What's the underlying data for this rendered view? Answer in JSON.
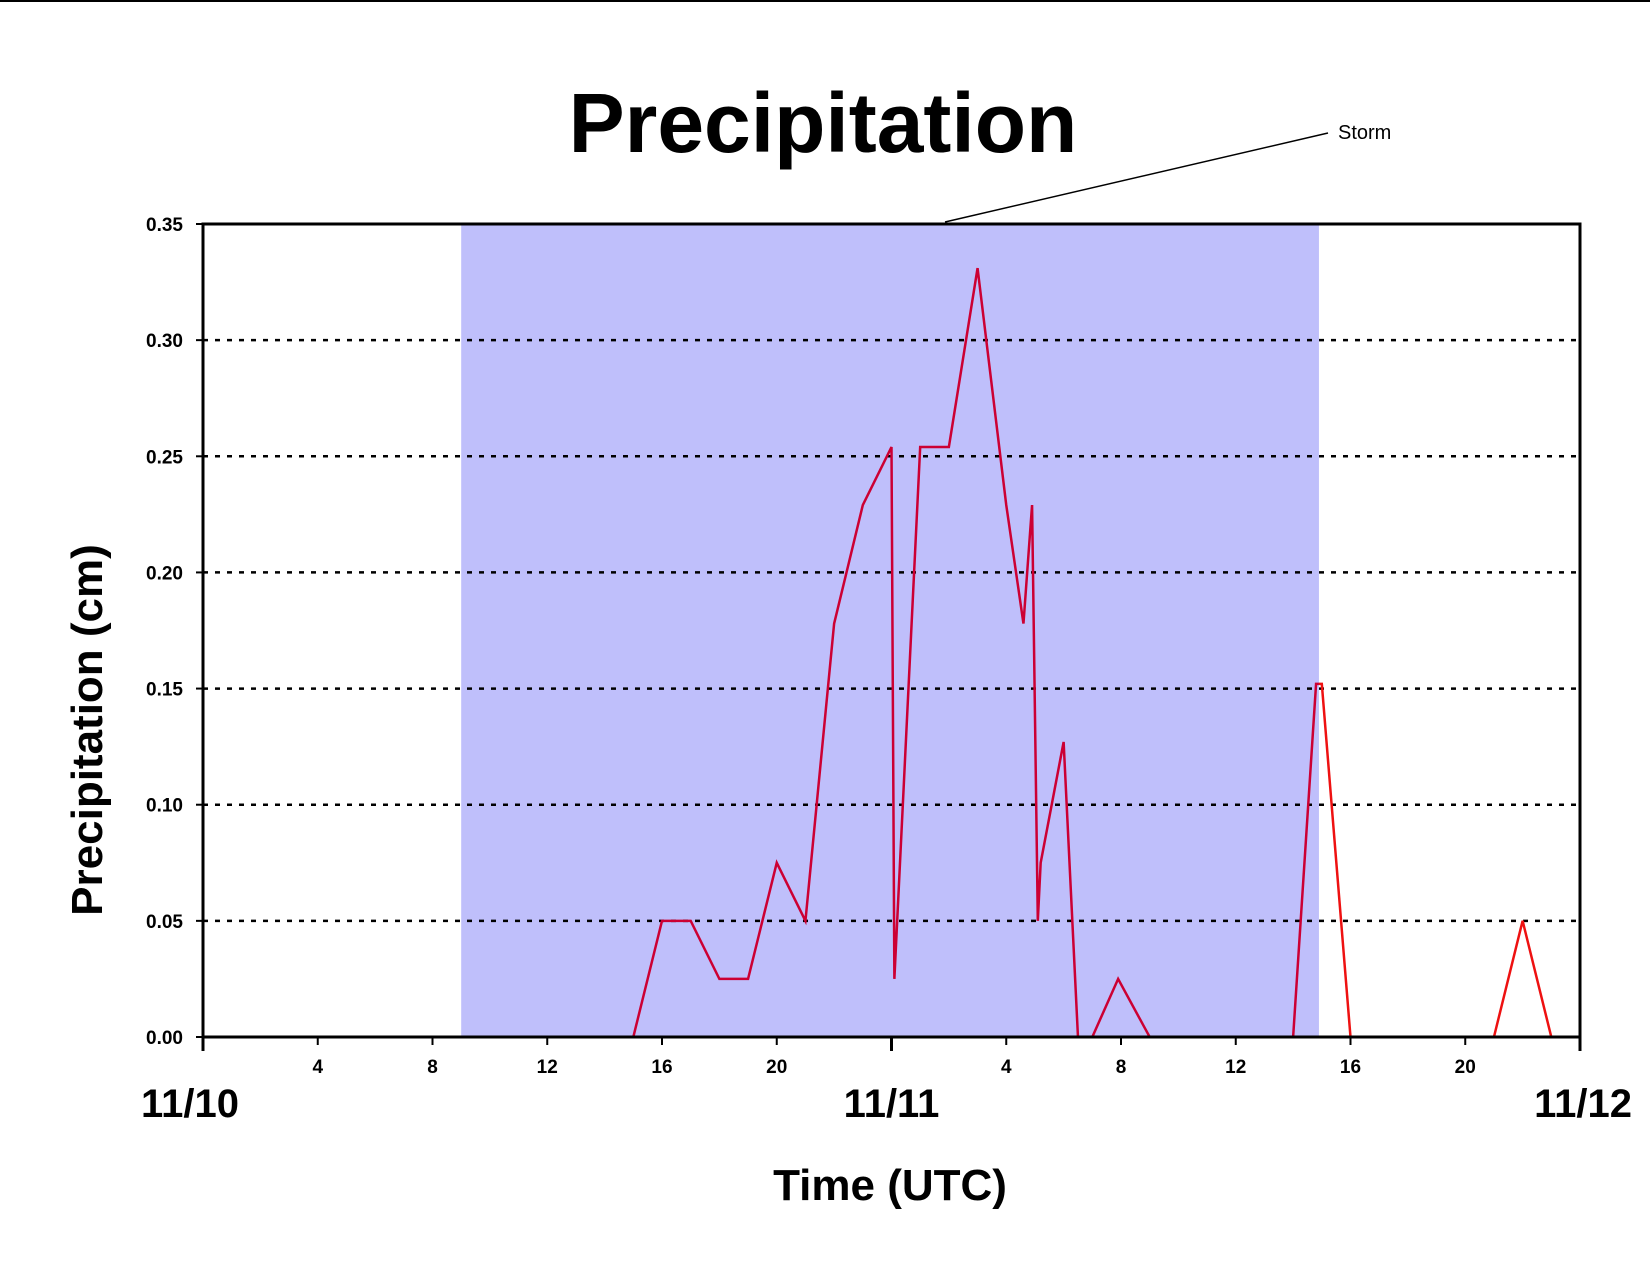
{
  "chart_data": {
    "type": "line",
    "title": "Precipitation",
    "xlabel": "Time (UTC)",
    "ylabel": "Precipitation (cm)",
    "xlim": [
      0,
      48
    ],
    "ylim": [
      0,
      0.35
    ],
    "y_ticks": [
      "0.00",
      "0.05",
      "0.10",
      "0.15",
      "0.20",
      "0.25",
      "0.30",
      "0.35"
    ],
    "grid": "horizontal dotted",
    "x_hour_ticks": [
      {
        "x": 4,
        "label": "4"
      },
      {
        "x": 8,
        "label": "8"
      },
      {
        "x": 12,
        "label": "12"
      },
      {
        "x": 16,
        "label": "16"
      },
      {
        "x": 20,
        "label": "20"
      },
      {
        "x": 28,
        "label": "4"
      },
      {
        "x": 32,
        "label": "8"
      },
      {
        "x": 36,
        "label": "12"
      },
      {
        "x": 40,
        "label": "16"
      },
      {
        "x": 44,
        "label": "20"
      }
    ],
    "x_date_labels": [
      {
        "x": 0,
        "label": "11/10"
      },
      {
        "x": 24,
        "label": "11/11"
      },
      {
        "x": 48,
        "label": "11/12"
      }
    ],
    "shaded_region": {
      "label": "Storm",
      "x_start": 9,
      "x_end": 38.9,
      "color": "#bfbffb"
    },
    "colors": {
      "line": "#cc0033",
      "line_outside_storm": "#ee1111"
    },
    "series": [
      {
        "values": [
          [
            0,
            0
          ],
          [
            15,
            0
          ],
          [
            16,
            0.05
          ],
          [
            17,
            0.05
          ],
          [
            18,
            0.025
          ],
          [
            19,
            0.025
          ],
          [
            20,
            0.075
          ],
          [
            21,
            0.05
          ],
          [
            22,
            0.178
          ],
          [
            23,
            0.229
          ],
          [
            24,
            0.254
          ],
          [
            24.1,
            0.025
          ],
          [
            25,
            0.254
          ],
          [
            26,
            0.254
          ],
          [
            27,
            0.331
          ],
          [
            28,
            0.229
          ],
          [
            28.6,
            0.178
          ],
          [
            28.9,
            0.229
          ],
          [
            29.1,
            0.05
          ],
          [
            29.2,
            0.075
          ],
          [
            30,
            0.127
          ],
          [
            30.5,
            0
          ],
          [
            31,
            0
          ],
          [
            31.9,
            0.025
          ],
          [
            33,
            0
          ],
          [
            38,
            0
          ],
          [
            38.8,
            0.152
          ],
          [
            39,
            0.152
          ],
          [
            40,
            0
          ],
          [
            45,
            0
          ],
          [
            46,
            0.05
          ],
          [
            47,
            0
          ],
          [
            48,
            0
          ]
        ]
      }
    ]
  }
}
